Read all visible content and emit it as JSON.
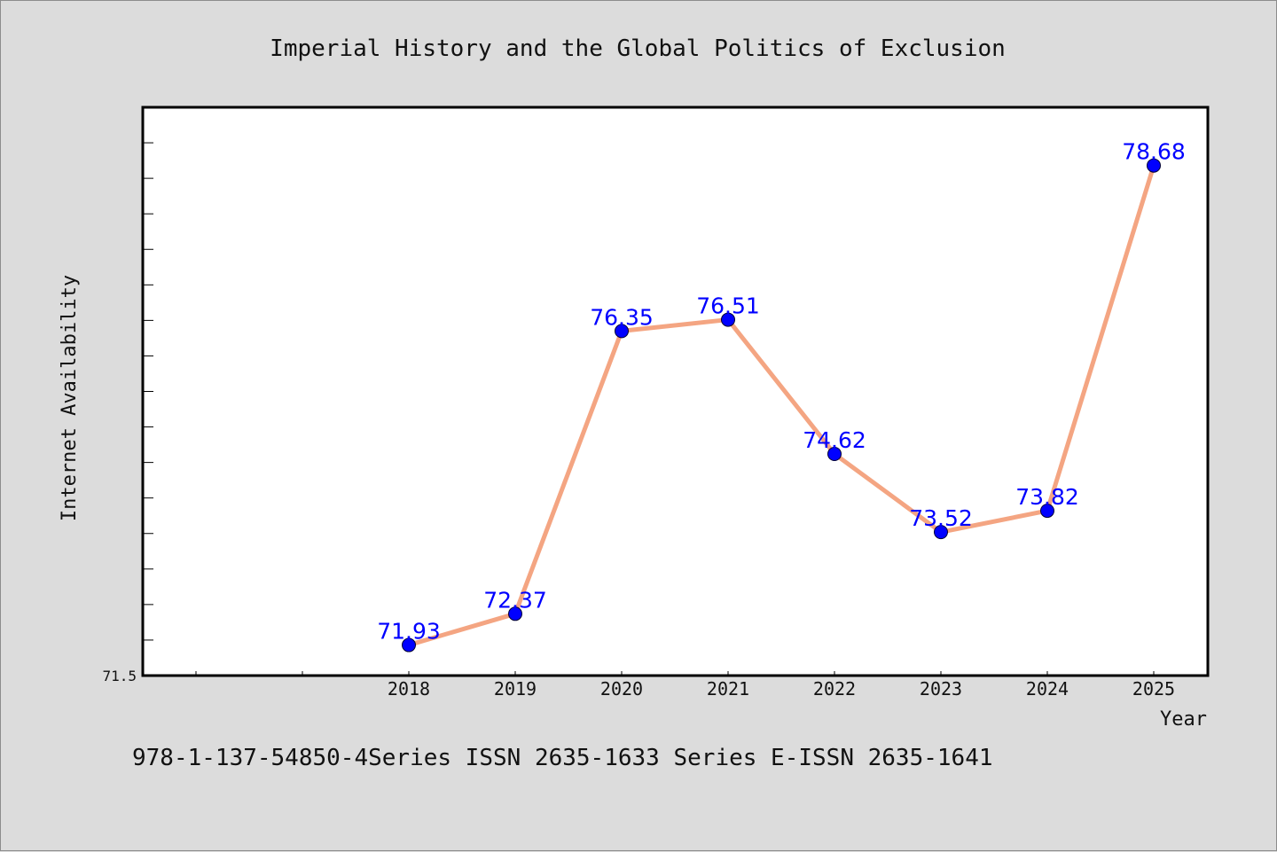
{
  "chart_data": {
    "type": "line",
    "title": "Imperial History and the Global Politics of Exclusion",
    "xlabel": "Year",
    "ylabel": "Internet Availability",
    "footer": "978-1-137-54850-4Series ISSN 2635-1633 Series E-ISSN 2635-1641",
    "categories": [
      "2018",
      "2019",
      "2020",
      "2021",
      "2022",
      "2023",
      "2024",
      "2025"
    ],
    "series": [
      {
        "values": [
          71.93,
          72.37,
          76.35,
          76.51,
          74.62,
          73.52,
          73.82,
          78.68
        ],
        "labels": [
          "71.93",
          "72.37",
          "76.35",
          "76.51",
          "74.62",
          "73.52",
          "73.82",
          "78.68"
        ]
      }
    ],
    "ylim": [
      71.5,
      79.5
    ],
    "yticks": [
      "71.5"
    ],
    "grid": false,
    "legend": "none",
    "colors": {
      "line": "#f4a582",
      "marker": "#0000ff",
      "label": "#0000ff",
      "background": "#dcdcdc",
      "plot_background": "#ffffff"
    }
  }
}
